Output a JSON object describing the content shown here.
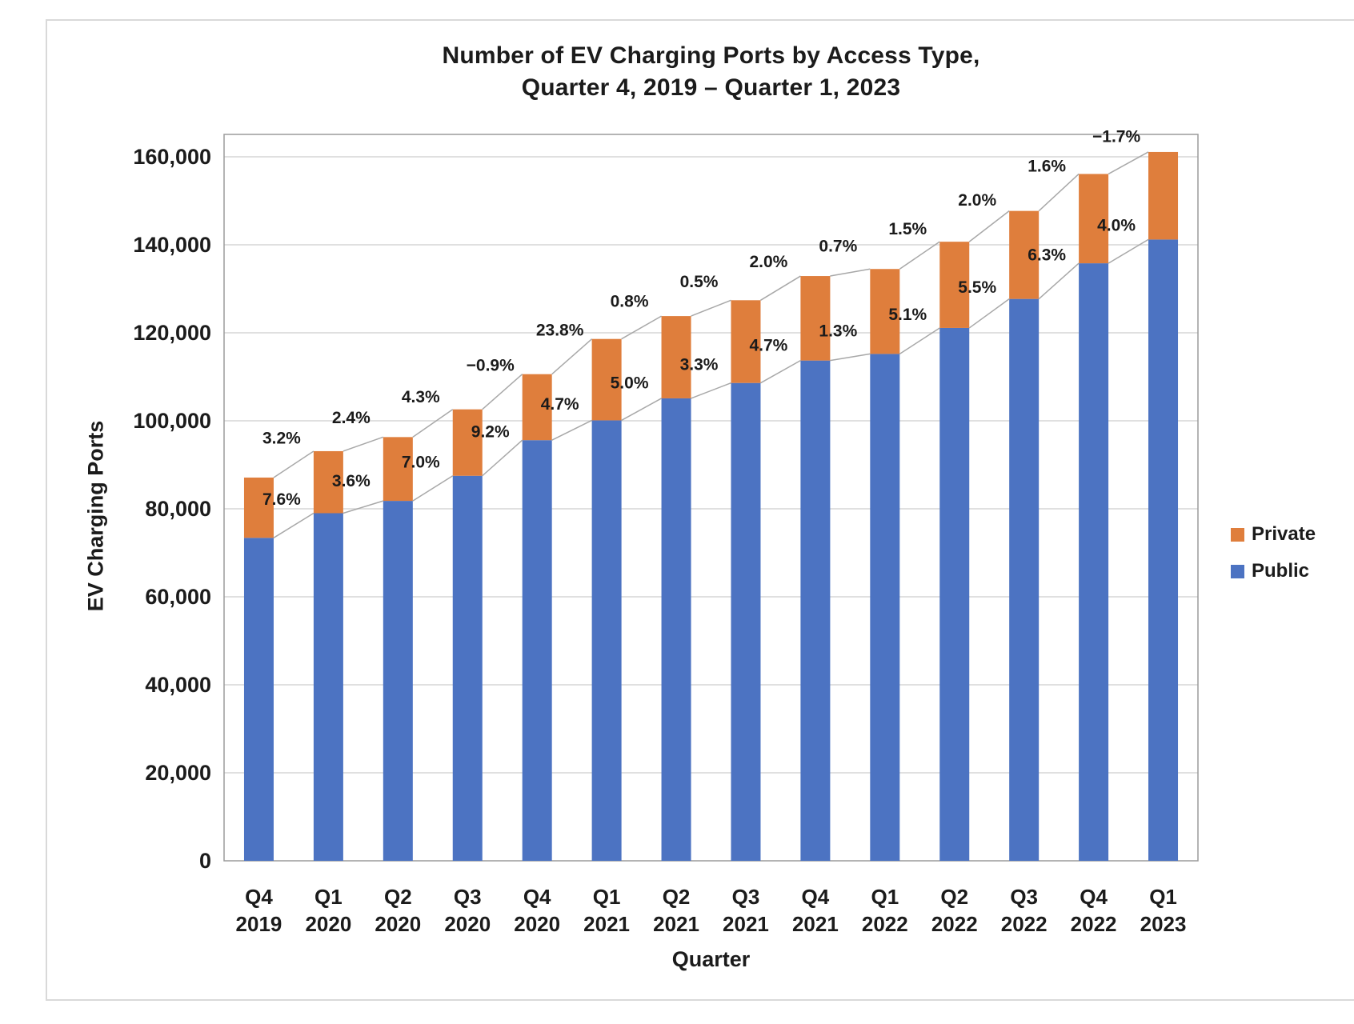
{
  "chart_data": {
    "type": "bar",
    "stacked": true,
    "title_line1": "Number of EV Charging Ports by Access Type,",
    "title_line2": "Quarter 4, 2019 – Quarter 1, 2023",
    "xlabel": "Quarter",
    "ylabel": "EV Charging Ports",
    "ylim": [
      0,
      165000
    ],
    "ytick_interval": 20000,
    "ytick_labels": [
      "0",
      "20,000",
      "40,000",
      "60,000",
      "80,000",
      "100,000",
      "120,000",
      "140,000",
      "160,000"
    ],
    "grid": true,
    "legend_position": "right",
    "categories": [
      [
        "Q4",
        "2019"
      ],
      [
        "Q1",
        "2020"
      ],
      [
        "Q2",
        "2020"
      ],
      [
        "Q3",
        "2020"
      ],
      [
        "Q4",
        "2020"
      ],
      [
        "Q1",
        "2021"
      ],
      [
        "Q2",
        "2021"
      ],
      [
        "Q3",
        "2021"
      ],
      [
        "Q4",
        "2021"
      ],
      [
        "Q1",
        "2022"
      ],
      [
        "Q2",
        "2022"
      ],
      [
        "Q3",
        "2022"
      ],
      [
        "Q4",
        "2022"
      ],
      [
        "Q1",
        "2023"
      ]
    ],
    "series": [
      {
        "name": "Public",
        "color": "#4C73C2",
        "values": [
          73400,
          79000,
          81800,
          87500,
          95600,
          100100,
          105100,
          108600,
          113700,
          115200,
          121100,
          127700,
          135800,
          141200
        ]
      },
      {
        "name": "Private",
        "color": "#DF7E3C",
        "values": [
          13700,
          14100,
          14500,
          15100,
          15000,
          18500,
          18700,
          18800,
          19200,
          19300,
          19600,
          20000,
          20300,
          19900
        ]
      }
    ],
    "growth_labels": {
      "private": [
        "3.2%",
        "2.4%",
        "4.3%",
        "−0.9%",
        "23.8%",
        "0.8%",
        "0.5%",
        "2.0%",
        "0.7%",
        "1.5%",
        "2.0%",
        "1.6%",
        "−1.7%"
      ],
      "public": [
        "7.6%",
        "3.6%",
        "7.0%",
        "9.2%",
        "4.7%",
        "5.0%",
        "3.3%",
        "4.7%",
        "1.3%",
        "5.1%",
        "5.5%",
        "6.3%",
        "4.0%"
      ]
    },
    "legend": [
      {
        "label": "Private",
        "color": "#DF7E3C"
      },
      {
        "label": "Public",
        "color": "#4C73C2"
      }
    ],
    "colors": {
      "grid": "#d6d6d6",
      "plot_border": "#9b9b9b",
      "connector_line": "#a8a8a8",
      "text": "#1b1b1b"
    }
  }
}
